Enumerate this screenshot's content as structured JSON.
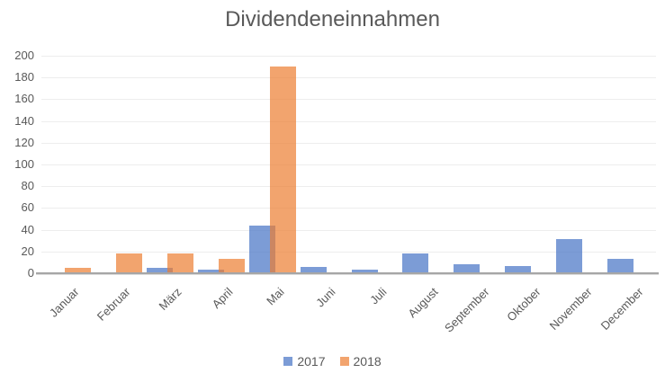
{
  "chart_data": {
    "type": "bar",
    "title": "Dividendeneinnahmen",
    "categories": [
      "Januar",
      "Februar",
      "März",
      "April",
      "Mai",
      "Juni",
      "Juli",
      "August",
      "September",
      "Oktober",
      "November",
      "December"
    ],
    "series": [
      {
        "name": "2017",
        "color": "#4472C4",
        "fill_opacity": 0.7,
        "values": [
          0,
          0,
          5,
          3,
          44,
          6,
          3,
          18,
          8,
          7,
          31,
          13
        ]
      },
      {
        "name": "2018",
        "color": "#ED7D31",
        "fill_opacity": 0.7,
        "values": [
          5,
          18,
          18,
          13,
          190,
          0,
          0,
          0,
          0,
          0,
          0,
          0
        ]
      }
    ],
    "ylim": [
      0,
      200
    ],
    "yticks": [
      0,
      20,
      40,
      60,
      80,
      100,
      120,
      140,
      160,
      180,
      200
    ],
    "xlabel": "",
    "ylabel": "",
    "grid": true,
    "legend_position": "bottom",
    "text_color": "#595959",
    "gridline_color": "#EDEDED",
    "axis_line_color": "#A6A6A6"
  }
}
